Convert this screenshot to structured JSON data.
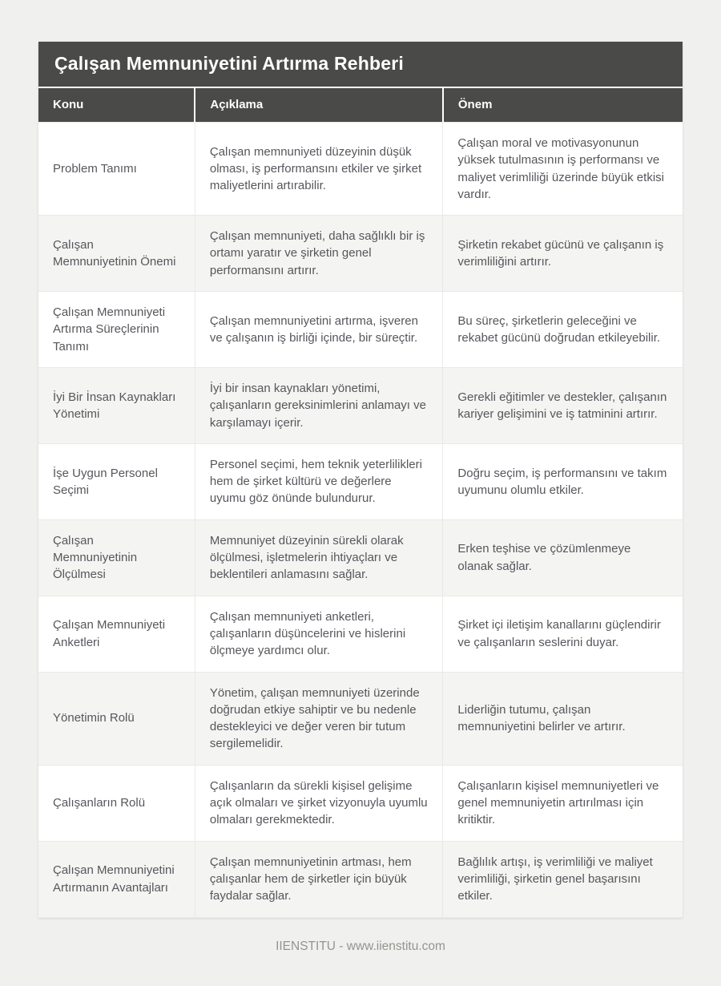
{
  "page": {
    "title": "Çalışan Memnuniyetini Artırma Rehberi",
    "footer": "IIENSTITU - www.iienstitu.com"
  },
  "colors": {
    "header_background": "#4a4a48",
    "header_text": "#ffffff",
    "body_text": "#56575c",
    "alt_row_background": "#f4f4f2",
    "cell_border": "#e9e9e7",
    "page_background": "#f0f0ee",
    "footer_text": "#94948f"
  },
  "table": {
    "columns": [
      "Konu",
      "Açıklama",
      "Önem"
    ],
    "rows": [
      {
        "konu": "Problem Tanımı",
        "aciklama": "Çalışan memnuniyeti düzeyinin düşük olması, iş performansını etkiler ve şirket maliyetlerini artırabilir.",
        "onem": "Çalışan moral ve motivasyonunun yüksek tutulmasının iş performansı ve maliyet verimliliği üzerinde büyük etkisi vardır."
      },
      {
        "konu": "Çalışan Memnuniyetinin Önemi",
        "aciklama": "Çalışan memnuniyeti, daha sağlıklı bir iş ortamı yaratır ve şirketin genel performansını artırır.",
        "onem": "Şirketin rekabet gücünü ve çalışanın iş verimliliğini artırır."
      },
      {
        "konu": "Çalışan Memnuniyeti Artırma Süreçlerinin Tanımı",
        "aciklama": "Çalışan memnuniyetini artırma, işveren ve çalışanın iş birliği içinde, bir süreçtir.",
        "onem": "Bu süreç, şirketlerin geleceğini ve rekabet gücünü doğrudan etkileyebilir."
      },
      {
        "konu": "İyi Bir İnsan Kaynakları Yönetimi",
        "aciklama": "İyi bir insan kaynakları yönetimi, çalışanların gereksinimlerini anlamayı ve karşılamayı içerir.",
        "onem": "Gerekli eğitimler ve destekler, çalışanın kariyer gelişimini ve iş tatminini artırır."
      },
      {
        "konu": "İşe Uygun Personel Seçimi",
        "aciklama": "Personel seçimi, hem teknik yeterlilikleri hem de şirket kültürü ve değerlere uyumu göz önünde bulundurur.",
        "onem": "Doğru seçim, iş performansını ve takım uyumunu olumlu etkiler."
      },
      {
        "konu": "Çalışan Memnuniyetinin Ölçülmesi",
        "aciklama": "Memnuniyet düzeyinin sürekli olarak ölçülmesi, işletmelerin ihtiyaçları ve beklentileri anlamasını sağlar.",
        "onem": "Erken teşhise ve çözümlenmeye olanak sağlar."
      },
      {
        "konu": "Çalışan Memnuniyeti Anketleri",
        "aciklama": "Çalışan memnuniyeti anketleri, çalışanların düşüncelerini ve hislerini ölçmeye yardımcı olur.",
        "onem": "Şirket içi iletişim kanallarını güçlendirir ve çalışanların seslerini duyar."
      },
      {
        "konu": "Yönetimin Rolü",
        "aciklama": "Yönetim, çalışan memnuniyeti üzerinde doğrudan etkiye sahiptir ve bu nedenle destekleyici ve değer veren bir tutum sergilemelidir.",
        "onem": "Liderliğin tutumu, çalışan memnuniyetini belirler ve artırır."
      },
      {
        "konu": "Çalışanların Rolü",
        "aciklama": "Çalışanların da sürekli kişisel gelişime açık olmaları ve şirket vizyonuyla uyumlu olmaları gerekmektedir.",
        "onem": "Çalışanların kişisel memnuniyetleri ve genel memnuniyetin artırılması için kritiktir."
      },
      {
        "konu": "Çalışan Memnuniyetini Artırmanın Avantajları",
        "aciklama": "Çalışan memnuniyetinin artması, hem çalışanlar hem de şirketler için büyük faydalar sağlar.",
        "onem": "Bağlılık artışı, iş verimliliği ve maliyet verimliliği, şirketin genel başarısını etkiler."
      }
    ]
  }
}
